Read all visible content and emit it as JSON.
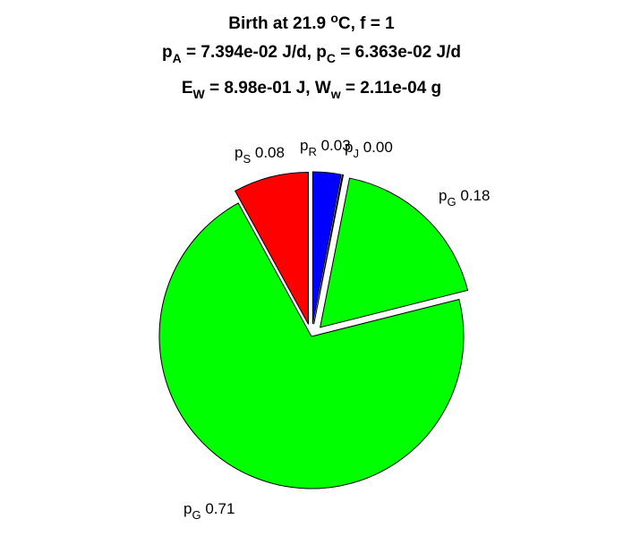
{
  "chart_data": {
    "type": "pie",
    "title": [
      "Birth at 21.9 °C, f = 1",
      "p_A = 7.394e-02 J/d, p_C = 6.363e-02 J/d",
      "E_W = 8.98e-01 J, W_w = 2.11e-04 g"
    ],
    "title_parts": {
      "line1": {
        "pre": "Birth at 21.9 ",
        "sup": "o",
        "post": "C, f = 1"
      },
      "line2": {
        "a": "p",
        "a_sub": "A",
        "a_val": " = 7.394e-02 J/d, ",
        "c": "p",
        "c_sub": "C",
        "c_val": " = 6.363e-02 J/d"
      },
      "line3": {
        "e": "E",
        "e_sub": "W",
        "e_val": " = 8.98e-01 J, ",
        "w": "W",
        "w_sub": "w",
        "w_val": " = 2.11e-04 g"
      }
    },
    "slices": [
      {
        "label": "p",
        "sub": "J",
        "value_text": "0.00",
        "value": 0.001,
        "color": "#ffffff",
        "exploded": true
      },
      {
        "label": "p",
        "sub": "G",
        "value_text": "0.18",
        "value": 0.18,
        "color": "#00ff00",
        "exploded": true
      },
      {
        "label": "p",
        "sub": "G",
        "value_text": "0.71",
        "value": 0.71,
        "color": "#00ff00",
        "exploded": false
      },
      {
        "label": "p",
        "sub": "S",
        "value_text": "0.08",
        "value": 0.08,
        "color": "#ff0000",
        "exploded": true
      },
      {
        "label": "p",
        "sub": "R",
        "value_text": "0.03",
        "value": 0.03,
        "color": "#0000ff",
        "exploded": true
      }
    ],
    "start": "12 o'clock",
    "direction": "clockwise"
  }
}
